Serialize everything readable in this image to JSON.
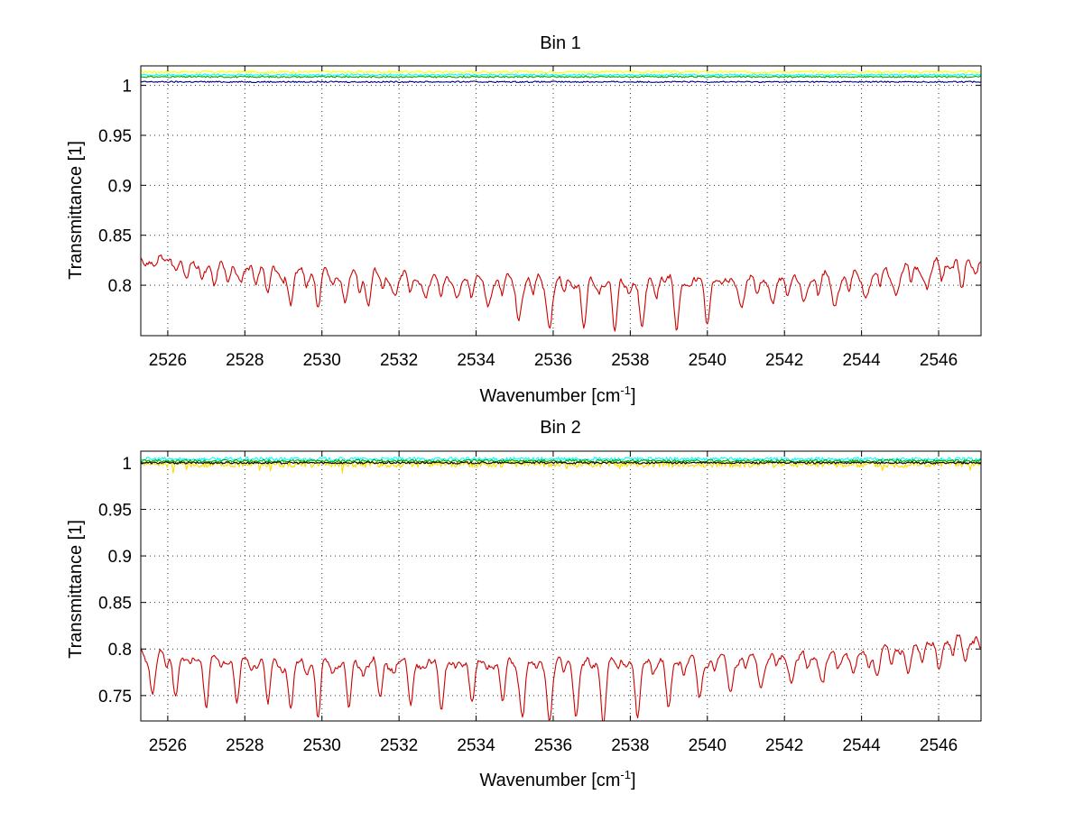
{
  "chart_data": [
    {
      "type": "line",
      "title": "Bin 1",
      "xlabel": "Wavenumber [cm",
      "xlabel_sup": "-1",
      "xlabel_close": "]",
      "ylabel": "Transmittance [1]",
      "xlim": [
        2525.3,
        2547.1
      ],
      "ylim": [
        0.7495,
        1.0195
      ],
      "xticks": [
        2526,
        2528,
        2530,
        2532,
        2534,
        2536,
        2538,
        2540,
        2542,
        2544,
        2546
      ],
      "yticks": [
        0.8,
        0.85,
        0.9,
        0.95,
        1.0
      ],
      "ytick_labels": [
        "0.8",
        "0.85",
        "0.9",
        "0.95",
        "1"
      ],
      "xtick_labels": [
        "2526",
        "2528",
        "2530",
        "2532",
        "2534",
        "2536",
        "2538",
        "2540",
        "2542",
        "2544",
        "2546"
      ],
      "grid": true,
      "series": [
        {
          "color": "#ffff00",
          "kind": "flat",
          "level": 1.0135,
          "noise": 0.0012
        },
        {
          "color": "#00ffff",
          "kind": "flat",
          "level": 1.0105,
          "noise": 0.001
        },
        {
          "color": "#00aa00",
          "kind": "flat",
          "level": 1.0085,
          "noise": 0.0008
        },
        {
          "color": "#000080",
          "kind": "flat",
          "level": 1.0035,
          "noise": 0.0007
        },
        {
          "color": "#cc0000",
          "kind": "spectrum",
          "base_x": [
            2525.3,
            2526.3,
            2528,
            2532,
            2536,
            2540,
            2544,
            2547.1
          ],
          "base_y": [
            0.825,
            0.822,
            0.818,
            0.808,
            0.803,
            0.805,
            0.808,
            0.826
          ],
          "dips": [
            {
              "x": 2526.5,
              "y": 0.805
            },
            {
              "x": 2527.2,
              "y": 0.798
            },
            {
              "x": 2527.9,
              "y": 0.797
            },
            {
              "x": 2528.6,
              "y": 0.79
            },
            {
              "x": 2529.2,
              "y": 0.778
            },
            {
              "x": 2529.9,
              "y": 0.777
            },
            {
              "x": 2530.6,
              "y": 0.778
            },
            {
              "x": 2531.2,
              "y": 0.782
            },
            {
              "x": 2531.9,
              "y": 0.787
            },
            {
              "x": 2532.7,
              "y": 0.782
            },
            {
              "x": 2533.5,
              "y": 0.78
            },
            {
              "x": 2534.3,
              "y": 0.775
            },
            {
              "x": 2535.1,
              "y": 0.765
            },
            {
              "x": 2535.9,
              "y": 0.759
            },
            {
              "x": 2536.8,
              "y": 0.758
            },
            {
              "x": 2537.6,
              "y": 0.754
            },
            {
              "x": 2538.3,
              "y": 0.752
            },
            {
              "x": 2539.2,
              "y": 0.759
            },
            {
              "x": 2540.0,
              "y": 0.766
            },
            {
              "x": 2540.9,
              "y": 0.774
            },
            {
              "x": 2541.7,
              "y": 0.776
            },
            {
              "x": 2542.5,
              "y": 0.776
            },
            {
              "x": 2543.3,
              "y": 0.775
            },
            {
              "x": 2544.1,
              "y": 0.787
            },
            {
              "x": 2544.9,
              "y": 0.792
            },
            {
              "x": 2545.7,
              "y": 0.795
            },
            {
              "x": 2546.6,
              "y": 0.795
            }
          ]
        }
      ]
    },
    {
      "type": "line",
      "title": "Bin 2",
      "xlabel": "Wavenumber [cm",
      "xlabel_sup": "-1",
      "xlabel_close": "]",
      "ylabel": "Transmittance [1]",
      "xlim": [
        2525.3,
        2547.1
      ],
      "ylim": [
        0.7227,
        1.0125
      ],
      "xticks": [
        2526,
        2528,
        2530,
        2532,
        2534,
        2536,
        2538,
        2540,
        2542,
        2544,
        2546
      ],
      "yticks": [
        0.75,
        0.8,
        0.85,
        0.9,
        0.95,
        1.0
      ],
      "ytick_labels": [
        "0.75",
        "0.8",
        "0.85",
        "0.9",
        "0.95",
        "1"
      ],
      "xtick_labels": [
        "2526",
        "2528",
        "2530",
        "2532",
        "2534",
        "2536",
        "2538",
        "2540",
        "2542",
        "2544",
        "2546"
      ],
      "grid": true,
      "series": [
        {
          "color": "#ffdd00",
          "kind": "flat",
          "level": 0.9985,
          "noise": 0.0035
        },
        {
          "color": "#00ffff",
          "kind": "flat",
          "level": 1.004,
          "noise": 0.002
        },
        {
          "color": "#00aa00",
          "kind": "flat",
          "level": 1.002,
          "noise": 0.0015
        },
        {
          "color": "#000000",
          "kind": "flat",
          "level": 1.0,
          "noise": 0.0012
        },
        {
          "color": "#cc0000",
          "kind": "spectrum",
          "base_x": [
            2525.3,
            2526.3,
            2528,
            2532,
            2536,
            2540,
            2543,
            2545,
            2547.1
          ],
          "base_y": [
            0.795,
            0.79,
            0.788,
            0.785,
            0.785,
            0.788,
            0.792,
            0.8,
            0.815
          ],
          "dips": [
            {
              "x": 2525.6,
              "y": 0.753
            },
            {
              "x": 2526.2,
              "y": 0.755
            },
            {
              "x": 2527.0,
              "y": 0.743
            },
            {
              "x": 2527.8,
              "y": 0.745
            },
            {
              "x": 2528.6,
              "y": 0.741
            },
            {
              "x": 2529.2,
              "y": 0.733
            },
            {
              "x": 2529.9,
              "y": 0.727
            },
            {
              "x": 2530.7,
              "y": 0.735
            },
            {
              "x": 2531.5,
              "y": 0.748
            },
            {
              "x": 2532.3,
              "y": 0.745
            },
            {
              "x": 2533.1,
              "y": 0.741
            },
            {
              "x": 2533.9,
              "y": 0.748
            },
            {
              "x": 2534.7,
              "y": 0.745
            },
            {
              "x": 2535.2,
              "y": 0.733
            },
            {
              "x": 2535.9,
              "y": 0.724
            },
            {
              "x": 2536.6,
              "y": 0.731
            },
            {
              "x": 2537.3,
              "y": 0.724
            },
            {
              "x": 2538.2,
              "y": 0.723
            },
            {
              "x": 2539.0,
              "y": 0.732
            },
            {
              "x": 2539.8,
              "y": 0.745
            },
            {
              "x": 2540.6,
              "y": 0.754
            },
            {
              "x": 2541.4,
              "y": 0.76
            },
            {
              "x": 2542.2,
              "y": 0.765
            },
            {
              "x": 2543.0,
              "y": 0.76
            },
            {
              "x": 2543.8,
              "y": 0.767
            },
            {
              "x": 2544.4,
              "y": 0.766
            },
            {
              "x": 2545.2,
              "y": 0.77
            },
            {
              "x": 2546.0,
              "y": 0.775
            },
            {
              "x": 2546.7,
              "y": 0.785
            }
          ]
        }
      ]
    }
  ]
}
